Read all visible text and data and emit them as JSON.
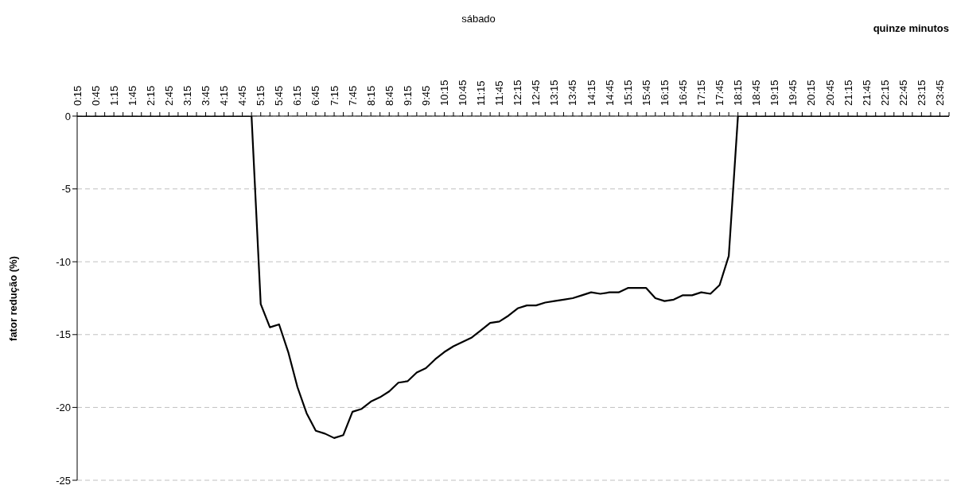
{
  "chart_data": {
    "type": "line",
    "title": "sábado",
    "xlabel": "quinze minutos",
    "ylabel": "fator redução (%)",
    "categories": [
      "0:15",
      null,
      "0:45",
      null,
      "1:15",
      null,
      "1:45",
      null,
      "2:15",
      null,
      "2:45",
      null,
      "3:15",
      null,
      "3:45",
      null,
      "4:15",
      null,
      "4:45",
      null,
      "5:15",
      null,
      "5:45",
      null,
      "6:15",
      null,
      "6:45",
      null,
      "7:15",
      null,
      "7:45",
      null,
      "8:15",
      null,
      "8:45",
      null,
      "9:15",
      null,
      "9:45",
      null,
      "10:15",
      null,
      "10:45",
      null,
      "11:15",
      null,
      "11:45",
      null,
      "12:15",
      null,
      "12:45",
      null,
      "13:15",
      null,
      "13:45",
      null,
      "14:15",
      null,
      "14:45",
      null,
      "15:15",
      null,
      "15:45",
      null,
      "16:15",
      null,
      "16:45",
      null,
      "17:15",
      null,
      "17:45",
      null,
      "18:15",
      null,
      "18:45",
      null,
      "19:15",
      null,
      "19:45",
      null,
      "20:15",
      null,
      "20:45",
      null,
      "21:15",
      null,
      "21:45",
      null,
      "22:15",
      null,
      "22:45",
      null,
      "23:15",
      null,
      "23:45",
      null
    ],
    "series": [
      {
        "color": "#000000",
        "values": [
          0,
          0,
          0,
          0,
          0,
          0,
          0,
          0,
          0,
          0,
          0,
          0,
          0,
          0,
          0,
          0,
          0,
          0,
          0,
          0,
          -12.9,
          -14.5,
          -14.3,
          -16.2,
          -18.6,
          -20.4,
          -21.6,
          -21.8,
          -22.1,
          -21.9,
          -20.3,
          -20.1,
          -19.6,
          -19.3,
          -18.9,
          -18.3,
          -18.2,
          -17.6,
          -17.3,
          -16.7,
          -16.2,
          -15.8,
          -15.5,
          -15.2,
          -14.7,
          -14.2,
          -14.1,
          -13.7,
          -13.2,
          -13.0,
          -13.0,
          -12.8,
          -12.7,
          -12.6,
          -12.5,
          -12.3,
          -12.1,
          -12.2,
          -12.1,
          -12.1,
          -11.8,
          -11.8,
          -11.8,
          -12.5,
          -12.7,
          -12.6,
          -12.3,
          -12.3,
          -12.1,
          -12.2,
          -11.6,
          -9.6,
          0,
          0,
          0,
          0,
          0,
          0,
          0,
          0,
          0,
          0,
          0,
          0,
          0,
          0,
          0,
          0,
          0,
          0,
          0,
          0,
          0,
          0,
          0,
          0
        ]
      }
    ],
    "ylim": [
      -25,
      0
    ],
    "yticks": [
      0,
      -5,
      -10,
      -15,
      -20,
      -25
    ],
    "grid": "y",
    "marker": "none",
    "line_style": "solid"
  }
}
